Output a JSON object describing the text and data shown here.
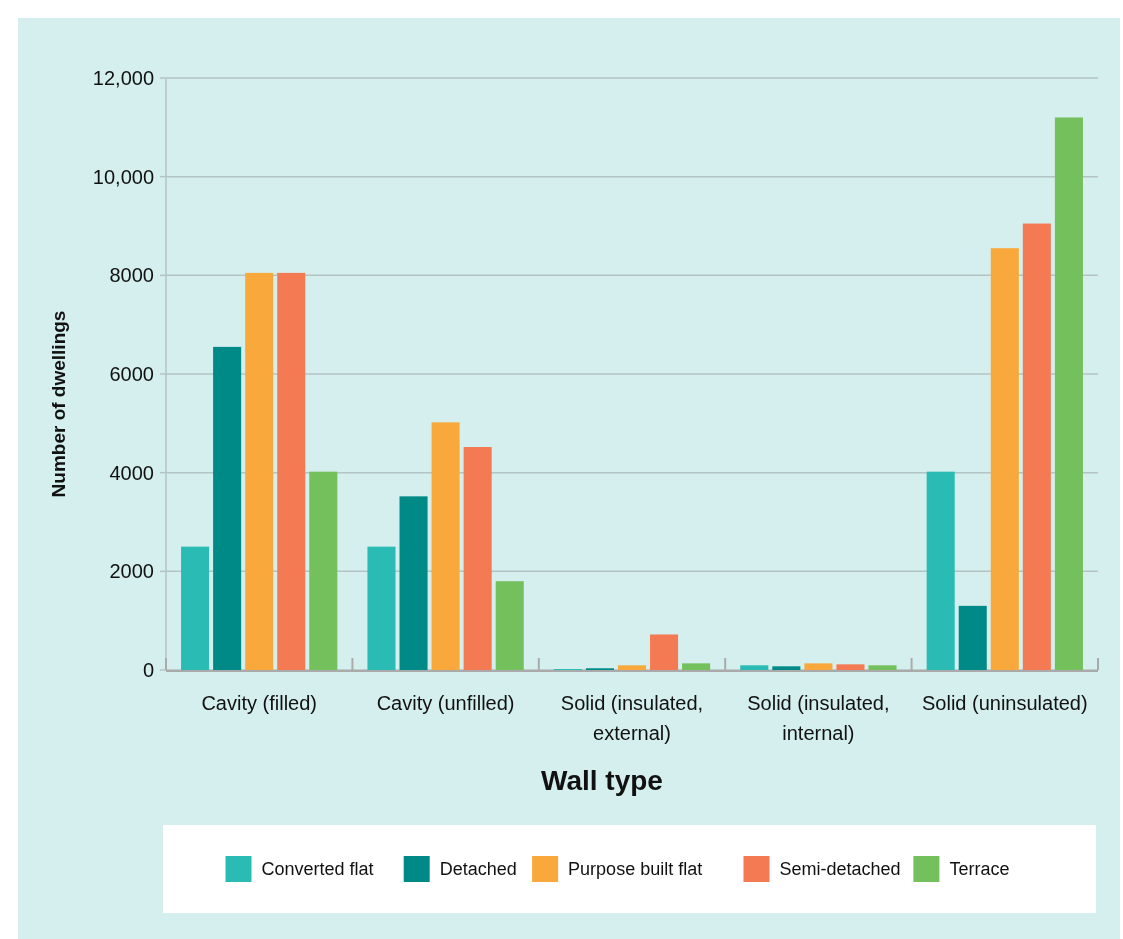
{
  "chart_data": {
    "type": "bar",
    "xlabel": "Wall type",
    "ylabel": "Number of dwellings",
    "categories": [
      "Cavity (filled)",
      "Cavity (unfilled)",
      "Solid (insulated, external)",
      "Solid (insulated, internal)",
      "Solid (uninsulated)"
    ],
    "series": [
      {
        "name": "Converted flat",
        "color": "#2bbbb5",
        "values": [
          2500,
          2500,
          20,
          95,
          4020
        ]
      },
      {
        "name": "Detached",
        "color": "#008a87",
        "values": [
          6550,
          3520,
          35,
          75,
          1300
        ]
      },
      {
        "name": "Purpose built flat",
        "color": "#f9a93b",
        "values": [
          8050,
          5020,
          95,
          135,
          8550
        ]
      },
      {
        "name": "Semi-detached",
        "color": "#f47a53",
        "values": [
          8050,
          4520,
          720,
          115,
          9050
        ]
      },
      {
        "name": "Terrace",
        "color": "#74c05d",
        "values": [
          4020,
          1800,
          135,
          95,
          11200
        ]
      }
    ],
    "ylim": [
      0,
      12000
    ],
    "yticks": [
      0,
      {
        "value": 2000,
        "label": "2000"
      },
      {
        "value": 4000,
        "label": "4000"
      },
      {
        "value": 6000,
        "label": "6000"
      },
      {
        "value": 8000,
        "label": "8000"
      },
      {
        "value": 10000,
        "label": "10,000"
      },
      {
        "value": 12000,
        "label": "12,000"
      }
    ],
    "grid": "y",
    "legend": "bottom"
  }
}
